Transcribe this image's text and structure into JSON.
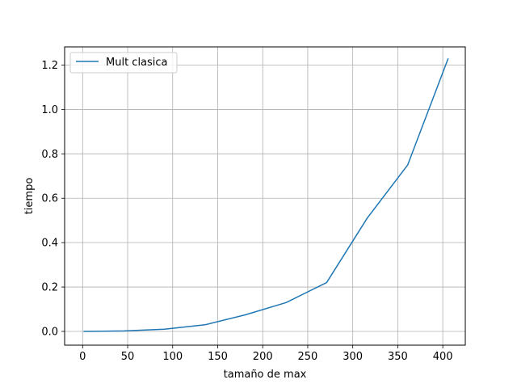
{
  "chart_data": {
    "type": "line",
    "title": "",
    "xlabel": "tamaño de max",
    "ylabel": "tiempo",
    "xlim": [
      -20,
      425
    ],
    "ylim": [
      -0.062,
      1.282
    ],
    "xticks": [
      0,
      50,
      100,
      150,
      200,
      250,
      300,
      350,
      400
    ],
    "xtick_labels": [
      "0",
      "50",
      "100",
      "150",
      "200",
      "250",
      "300",
      "350",
      "400"
    ],
    "yticks": [
      0.0,
      0.2,
      0.4,
      0.6,
      0.8,
      1.0,
      1.2
    ],
    "ytick_labels": [
      "0.0",
      "0.2",
      "0.4",
      "0.6",
      "0.8",
      "1.0",
      "1.2"
    ],
    "grid": true,
    "legend_position": "upper-left",
    "series": [
      {
        "name": "Mult clasica",
        "color": "#1f77b4",
        "x": [
          1,
          46,
          91,
          136,
          181,
          226,
          271,
          316,
          361,
          406
        ],
        "y": [
          0.0,
          0.002,
          0.01,
          0.03,
          0.075,
          0.13,
          0.22,
          0.51,
          0.75,
          1.23
        ]
      }
    ]
  }
}
